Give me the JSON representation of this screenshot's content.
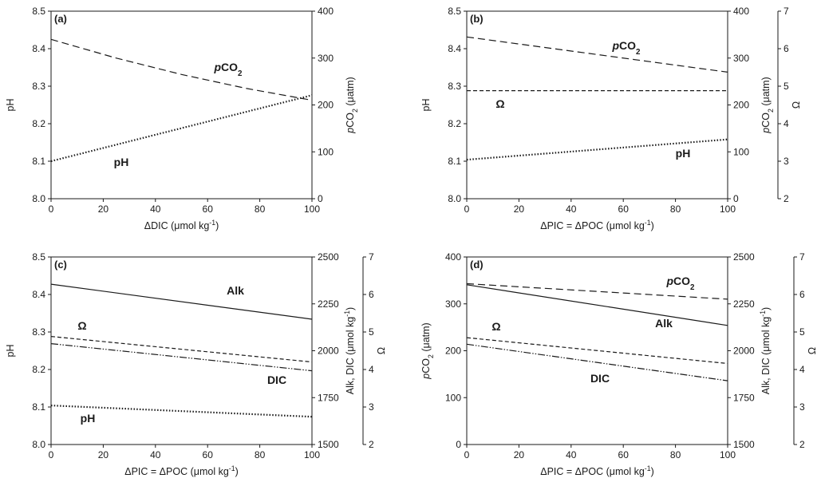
{
  "chart_data": [
    {
      "type": "line",
      "panel_label": "(a)",
      "xlabel": "ΔDIC (μmol kg⁻¹)",
      "xlim": [
        0,
        100
      ],
      "xticks": [
        0,
        20,
        40,
        60,
        80,
        100
      ],
      "axes": [
        {
          "side": "left",
          "label": "pH",
          "lim": [
            8.0,
            8.5
          ],
          "ticks": [
            8.0,
            8.1,
            8.2,
            8.3,
            8.4,
            8.5
          ],
          "decimals": 1
        },
        {
          "side": "right",
          "label": "pCO₂ (μatm)",
          "lim": [
            0,
            400
          ],
          "ticks": [
            0,
            100,
            200,
            300,
            400
          ],
          "decimals": 0
        }
      ],
      "series": [
        {
          "name": "pCO₂",
          "axis": 1,
          "style": "longdash",
          "x": [
            0,
            25,
            50,
            75,
            100
          ],
          "y": [
            340,
            300,
            265,
            235,
            210
          ]
        },
        {
          "name": "pH",
          "axis": 0,
          "style": "dotted",
          "x": [
            0,
            50,
            100
          ],
          "y": [
            8.1,
            8.188,
            8.276
          ]
        }
      ]
    },
    {
      "type": "line",
      "panel_label": "(b)",
      "xlabel": "ΔPIC = ΔPOC (μmol kg⁻¹)",
      "xlim": [
        0,
        100
      ],
      "xticks": [
        0,
        20,
        40,
        60,
        80,
        100
      ],
      "axes": [
        {
          "side": "left",
          "label": "pH",
          "lim": [
            8.0,
            8.5
          ],
          "ticks": [
            8.0,
            8.1,
            8.2,
            8.3,
            8.4,
            8.5
          ],
          "decimals": 1
        },
        {
          "side": "right",
          "label": "pCO₂ (μatm)",
          "lim": [
            0,
            400
          ],
          "ticks": [
            0,
            100,
            200,
            300,
            400
          ],
          "decimals": 0
        },
        {
          "side": "right2",
          "label": "Ω",
          "lim": [
            2,
            7
          ],
          "ticks": [
            2,
            3,
            4,
            5,
            6,
            7
          ],
          "decimals": 0
        }
      ],
      "series": [
        {
          "name": "pCO₂",
          "axis": 1,
          "style": "longdash",
          "x": [
            0,
            100
          ],
          "y": [
            345,
            270
          ]
        },
        {
          "name": "Ω",
          "axis": 2,
          "style": "shortdash",
          "x": [
            0,
            100
          ],
          "y": [
            4.88,
            4.88
          ]
        },
        {
          "name": "pH",
          "axis": 0,
          "style": "dotted",
          "x": [
            0,
            100
          ],
          "y": [
            8.104,
            8.158
          ]
        }
      ]
    },
    {
      "type": "line",
      "panel_label": "(c)",
      "xlabel": "ΔPIC = ΔPOC (μmol kg⁻¹)",
      "xlim": [
        0,
        100
      ],
      "xticks": [
        0,
        20,
        40,
        60,
        80,
        100
      ],
      "axes": [
        {
          "side": "left",
          "label": "pH",
          "lim": [
            8.0,
            8.5
          ],
          "ticks": [
            8.0,
            8.1,
            8.2,
            8.3,
            8.4,
            8.5
          ],
          "decimals": 1
        },
        {
          "side": "right",
          "label": "Alk, DIC (μmol kg⁻¹)",
          "lim": [
            1500,
            2500
          ],
          "ticks": [
            1500,
            1750,
            2000,
            2250,
            2500
          ],
          "decimals": 0
        },
        {
          "side": "right2",
          "label": "Ω",
          "lim": [
            2,
            7
          ],
          "ticks": [
            2,
            3,
            4,
            5,
            6,
            7
          ],
          "decimals": 0
        }
      ],
      "series": [
        {
          "name": "Alk",
          "axis": 1,
          "style": "solid",
          "x": [
            0,
            100
          ],
          "y": [
            2355,
            2168
          ]
        },
        {
          "name": "Ω",
          "axis": 2,
          "style": "shortdash",
          "x": [
            0,
            100
          ],
          "y": [
            4.88,
            4.2
          ]
        },
        {
          "name": "DIC",
          "axis": 1,
          "style": "dashdotdot",
          "x": [
            0,
            100
          ],
          "y": [
            2038,
            1893
          ]
        },
        {
          "name": "pH",
          "axis": 0,
          "style": "dotted",
          "x": [
            0,
            100
          ],
          "y": [
            8.104,
            8.074
          ]
        }
      ]
    },
    {
      "type": "line",
      "panel_label": "(d)",
      "xlabel": "ΔPIC = ΔPOC (μmol kg⁻¹)",
      "xlim": [
        0,
        100
      ],
      "xticks": [
        0,
        20,
        40,
        60,
        80,
        100
      ],
      "axes": [
        {
          "side": "left",
          "label": "pCO₂ (μatm)",
          "lim": [
            0,
            400
          ],
          "ticks": [
            0,
            100,
            200,
            300,
            400
          ],
          "decimals": 0
        },
        {
          "side": "right",
          "label": "Alk, DIC (μmol kg⁻¹)",
          "lim": [
            1500,
            2500
          ],
          "ticks": [
            1500,
            1750,
            2000,
            2250,
            2500
          ],
          "decimals": 0
        },
        {
          "side": "right2",
          "label": "Ω",
          "lim": [
            2,
            7
          ],
          "ticks": [
            2,
            3,
            4,
            5,
            6,
            7
          ],
          "decimals": 0
        }
      ],
      "series": [
        {
          "name": "pCO₂",
          "axis": 0,
          "style": "longdash",
          "x": [
            0,
            100
          ],
          "y": [
            343,
            310
          ]
        },
        {
          "name": "Alk",
          "axis": 1,
          "style": "solid",
          "x": [
            0,
            100
          ],
          "y": [
            2352,
            2135
          ]
        },
        {
          "name": "Ω",
          "axis": 2,
          "style": "shortdash",
          "x": [
            0,
            100
          ],
          "y": [
            4.85,
            4.16
          ]
        },
        {
          "name": "DIC",
          "axis": 1,
          "style": "dashdotdot",
          "x": [
            0,
            100
          ],
          "y": [
            2035,
            1840
          ]
        }
      ]
    }
  ]
}
